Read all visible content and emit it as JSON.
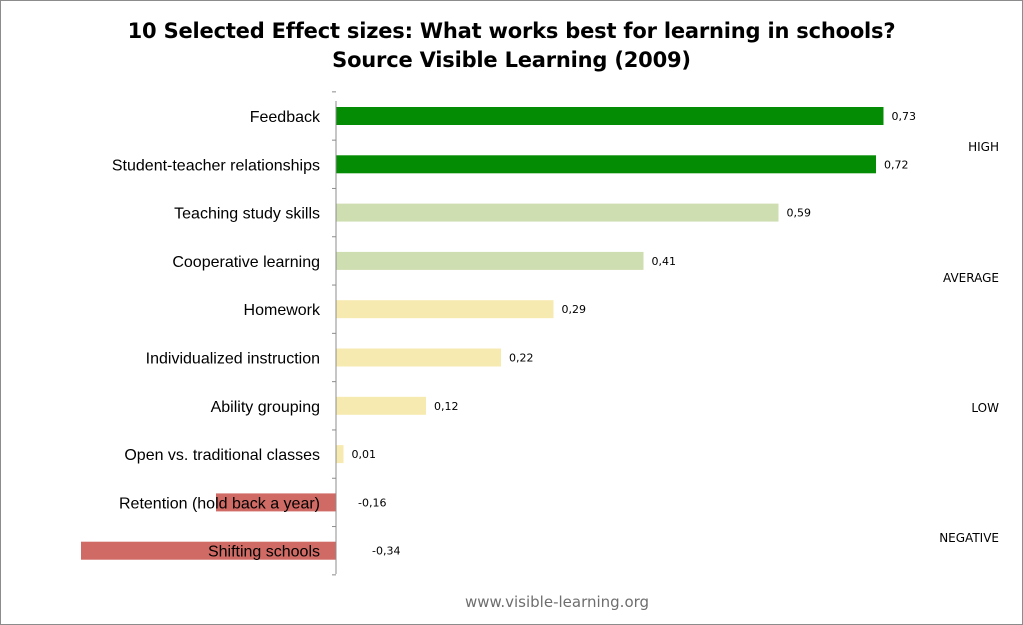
{
  "chart_data": {
    "type": "bar",
    "orientation": "horizontal",
    "title": "10 Selected Effect sizes: What works best for learning in schools?",
    "subtitle": "Source Visible Learning (2009)",
    "categories": [
      "Feedback",
      "Student-teacher relationships",
      "Teaching study skills",
      "Cooperative learning",
      "Homework",
      "Individualized instruction",
      "Ability grouping",
      "Open vs. traditional classes",
      "Retention (hold back a year)",
      "Shifting schools"
    ],
    "values": [
      0.73,
      0.72,
      0.59,
      0.41,
      0.29,
      0.22,
      0.12,
      0.01,
      -0.16,
      -0.34
    ],
    "value_labels": [
      "0,73",
      "0,72",
      "0,59",
      "0,41",
      "0,29",
      "0,22",
      "0,12",
      "0,01",
      "-0,16",
      "-0,34"
    ],
    "bar_colors": [
      "#048c04",
      "#048c04",
      "#cfdeb0",
      "#cfdeb0",
      "#f7eab1",
      "#f7eab1",
      "#f7eab1",
      "#f7eab1",
      "#d06a64",
      "#d06a64"
    ],
    "zones": [
      "HIGH",
      "AVERAGE",
      "LOW",
      "NEGATIVE"
    ],
    "xlim": [
      -0.34,
      0.73
    ],
    "xlabel": "",
    "ylabel": "",
    "grid": false,
    "legend": "none"
  },
  "footer": "www.visible-learning.org"
}
